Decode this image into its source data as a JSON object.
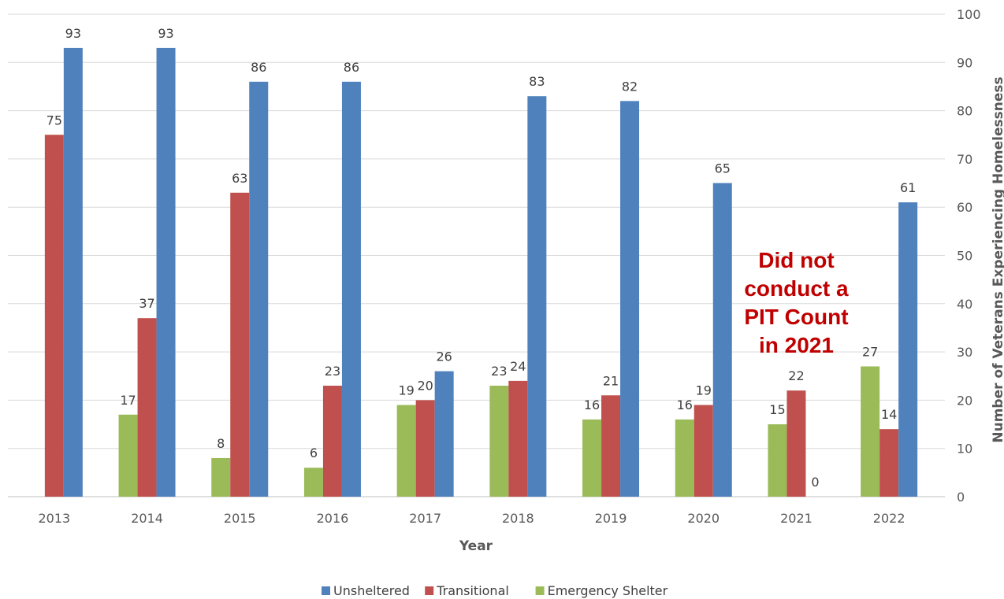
{
  "chart_data": {
    "type": "bar",
    "title": "",
    "xlabel": "Year",
    "ylabel": "Number of Veterans Experiencing Homelessness",
    "ylim": [
      0,
      100
    ],
    "yticks": [
      "0",
      "10",
      "20",
      "30",
      "40",
      "50",
      "60",
      "70",
      "80",
      "90",
      "100"
    ],
    "y_axis_side": "right",
    "grid": true,
    "legend_position": "bottom",
    "categories": [
      "2013",
      "2014",
      "2015",
      "2016",
      "2017",
      "2018",
      "2019",
      "2020",
      "2021",
      "2022"
    ],
    "series": [
      {
        "name": "Emergency Shelter",
        "color": "#9bbb59",
        "values": [
          null,
          17,
          8,
          6,
          19,
          23,
          16,
          16,
          15,
          27
        ]
      },
      {
        "name": "Transitional",
        "color": "#c0504d",
        "values": [
          75,
          37,
          63,
          23,
          20,
          24,
          21,
          19,
          22,
          14
        ]
      },
      {
        "name": "Unsheltered",
        "color": "#4f81bd",
        "values": [
          93,
          93,
          86,
          86,
          26,
          83,
          82,
          65,
          0,
          61
        ]
      }
    ],
    "legend_order": [
      "Unsheltered",
      "Transitional",
      "Emergency Shelter"
    ],
    "annotation": {
      "lines": [
        "Did not",
        "conduct a",
        "PIT Count",
        "in 2021"
      ],
      "color": "#c00000",
      "category": "2021"
    }
  }
}
